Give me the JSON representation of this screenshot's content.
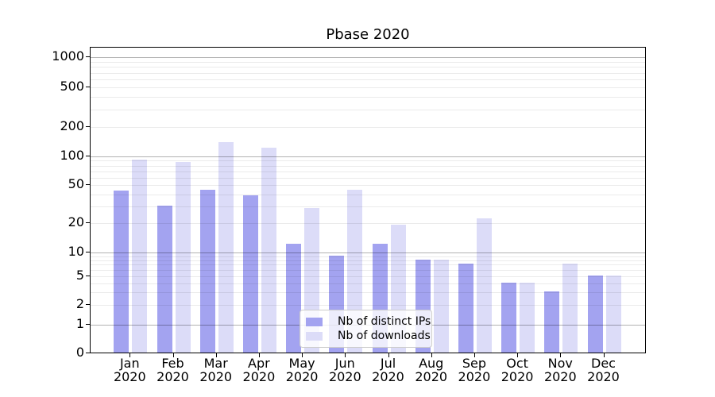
{
  "chart_data": {
    "type": "bar",
    "title": "Pbase 2020",
    "year": "2020",
    "months": [
      "Jan",
      "Feb",
      "Mar",
      "Apr",
      "May",
      "Jun",
      "Jul",
      "Aug",
      "Sep",
      "Oct",
      "Nov",
      "Dec"
    ],
    "categories": [
      "Jan 2020",
      "Feb 2020",
      "Mar 2020",
      "Apr 2020",
      "May 2020",
      "Jun 2020",
      "Jul 2020",
      "Aug 2020",
      "Sep 2020",
      "Oct 2020",
      "Nov 2020",
      "Dec 2020"
    ],
    "series": [
      {
        "name": "Nb of distinct IPs",
        "color": "#a3a3f0",
        "values": [
          43,
          30,
          44,
          38,
          12,
          9,
          12,
          8,
          7,
          4,
          3,
          5
        ]
      },
      {
        "name": "Nb of downloads",
        "color": "#dcdcf8",
        "values": [
          90,
          85,
          138,
          120,
          28,
          44,
          19,
          8,
          22,
          4,
          7,
          5
        ]
      }
    ],
    "yticks": [
      0,
      1,
      2,
      5,
      10,
      20,
      50,
      100,
      200,
      500,
      1000
    ],
    "ylabel": "",
    "xlabel": "",
    "ylim": [
      0,
      1200
    ],
    "yscale": "log-like with 0 baseline (ticks 0,1,2,5,10,20,50,100,200,500,1000)",
    "grid": "horizontal major and minor gridlines",
    "legend_position": "lower center inside plot",
    "background": "#ffffff"
  }
}
